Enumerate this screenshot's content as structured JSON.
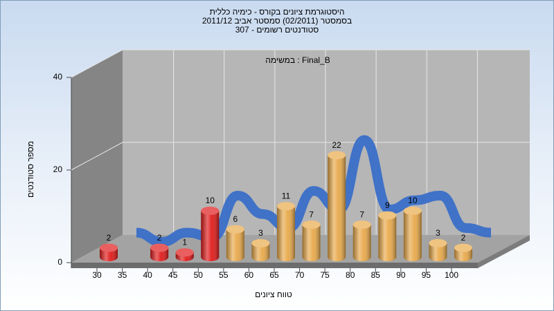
{
  "chart_data": {
    "type": "bar",
    "title": [
      "היסטוגרמת ציונים בקורס - כימיה כללית",
      "בסמסטר (02/2011)  סמסטר אביב 2011/12",
      "סטודנטים רשומים - 307"
    ],
    "subtitle": "במשימה : Final_B",
    "x_label": "טווח ציונים",
    "y_label": "מספר סטודנטים",
    "categories": [
      "30",
      "35",
      "40",
      "45",
      "50",
      "55",
      "60",
      "65",
      "70",
      "75",
      "80",
      "85",
      "90",
      "95",
      "100"
    ],
    "values": [
      2,
      0,
      2,
      1,
      10,
      6,
      3,
      11,
      7,
      22,
      7,
      9,
      10,
      3,
      2
    ],
    "colors": [
      "#e01a1a",
      "#e01a1a",
      "#e01a1a",
      "#e01a1a",
      "#e01a1a",
      "#e8a94a",
      "#e8a94a",
      "#e8a94a",
      "#e8a94a",
      "#e8a94a",
      "#e8a94a",
      "#e8a94a",
      "#e8a94a",
      "#e8a94a",
      "#e8a94a"
    ],
    "curve_color": "#3a6fc8",
    "ylim": [
      0,
      40
    ],
    "yticks": [
      0,
      20,
      40
    ],
    "grid": true
  }
}
